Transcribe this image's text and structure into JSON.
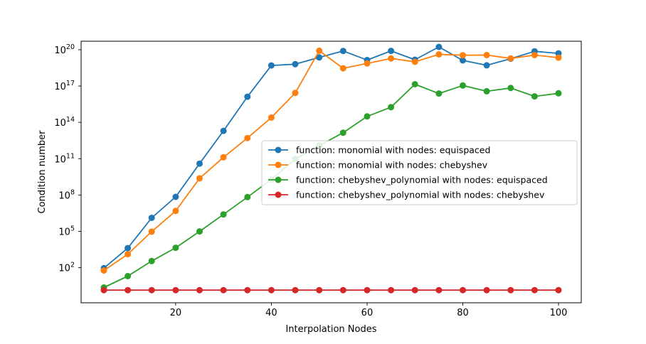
{
  "chart_data": {
    "type": "line",
    "title": "",
    "xlabel": "Interpolation Nodes",
    "ylabel": "Condition number",
    "yscale": "log",
    "xlim": [
      0.25,
      104.75
    ],
    "ylim_log10": [
      -0.9,
      20.7
    ],
    "x_ticks": [
      20,
      40,
      60,
      80,
      100
    ],
    "x_tick_labels": [
      "20",
      "40",
      "60",
      "80",
      "100"
    ],
    "y_ticks_log10": [
      2,
      5,
      8,
      11,
      14,
      17,
      20
    ],
    "y_tick_labels": [
      {
        "base": "10",
        "exp": "2"
      },
      {
        "base": "10",
        "exp": "5"
      },
      {
        "base": "10",
        "exp": "8"
      },
      {
        "base": "10",
        "exp": "11"
      },
      {
        "base": "10",
        "exp": "14"
      },
      {
        "base": "10",
        "exp": "17"
      },
      {
        "base": "10",
        "exp": "20"
      }
    ],
    "grid": false,
    "legend_position": "center-right",
    "x": [
      5,
      10,
      15,
      20,
      25,
      30,
      35,
      40,
      45,
      50,
      55,
      60,
      65,
      70,
      75,
      80,
      85,
      90,
      95,
      100
    ],
    "series": [
      {
        "name": "function: monomial with nodes: equispaced",
        "color": "#1f77b4",
        "values": [
          91.0,
          4100.0,
          1300000.0,
          70000000.0,
          39000000000.0,
          20000000000000.0,
          1.3e+16,
          5e+18,
          6.4e+18,
          2.3e+19,
          7.9e+19,
          1.4e+19,
          8e+19,
          1.5e+19,
          1.7e+20,
          1.3e+19,
          5.1e+18,
          1.8e+19,
          7.4e+19,
          5e+19
        ]
      },
      {
        "name": "function: monomial with nodes: chebyshev",
        "color": "#ff7f0e",
        "values": [
          58.0,
          1300.0,
          94000.0,
          4800000.0,
          2400000000.0,
          130000000000.0,
          5100000000000.0,
          250000000000000.0,
          2.7e+16,
          8.2e+19,
          2.9e+18,
          7.4e+18,
          1.9e+19,
          1e+19,
          4.1e+19,
          3.5e+19,
          3.6e+19,
          1.9e+19,
          3.6e+19,
          2.2e+19
        ]
      },
      {
        "name": "function: chebyshev_polynomial with nodes: equispaced",
        "color": "#2ca02c",
        "values": [
          2.3,
          20.0,
          350.0,
          4400.0,
          98000.0,
          2500000.0,
          67000000.0,
          1900000000.0,
          93000000000.0,
          1200000000000.0,
          14000000000000.0,
          310000000000000.0,
          1800000000000000.0,
          1.4e+17,
          2.4e+16,
          1.1e+17,
          3.7e+16,
          6.9e+16,
          1.4e+16,
          2.5e+16
        ]
      },
      {
        "name": "function: chebyshev_polynomial with nodes: chebyshev",
        "color": "#d62728",
        "values": [
          1.4,
          1.4,
          1.4,
          1.4,
          1.4,
          1.4,
          1.4,
          1.4,
          1.4,
          1.4,
          1.4,
          1.4,
          1.4,
          1.4,
          1.4,
          1.4,
          1.4,
          1.4,
          1.4,
          1.4
        ]
      }
    ]
  }
}
